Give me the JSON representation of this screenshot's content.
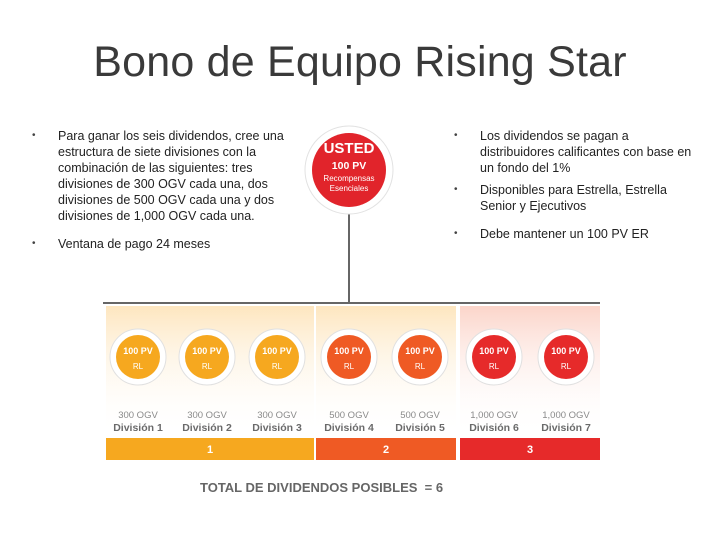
{
  "slide": {
    "title": "Bono de Equipo Rising Star",
    "left_bullets": [
      "Para ganar los seis dividendos, cree una estructura de siete divisiones con la combinación de las siguientes: tres divisiones de 300 OGV cada una, dos divisiones de 500 OGV cada una y dos divisiones de 1,000 OGV cada una.",
      "Ventana de pago 24 meses"
    ],
    "right_bullets": [
      "Los dividendos se pagan a distribuidores calificantes con base en un fondo del 1%",
      "Disponibles para Estrella, Estrella Senior y Ejecutivos",
      "Debe mantener un 100 PV ER"
    ]
  },
  "diagram": {
    "center": {
      "label": "USTED",
      "pv": "100 PV",
      "sub1": "Recompensas",
      "sub2": "Esenciales"
    },
    "divisions": [
      {
        "pv": "100 PV",
        "rl": "RL",
        "ogv": "300 OGV",
        "name": "División 1"
      },
      {
        "pv": "100 PV",
        "rl": "RL",
        "ogv": "300 OGV",
        "name": "División 2"
      },
      {
        "pv": "100 PV",
        "rl": "RL",
        "ogv": "300 OGV",
        "name": "División 3"
      },
      {
        "pv": "100 PV",
        "rl": "RL",
        "ogv": "500 OGV",
        "name": "División 4"
      },
      {
        "pv": "100 PV",
        "rl": "RL",
        "ogv": "500 OGV",
        "name": "División 5"
      },
      {
        "pv": "100 PV",
        "rl": "RL",
        "ogv": "1,000 OGV",
        "name": "División 6"
      },
      {
        "pv": "100 PV",
        "rl": "RL",
        "ogv": "1,000 OGV",
        "name": "División 7"
      }
    ],
    "groups": [
      {
        "number": "1",
        "color": "#f6a81f"
      },
      {
        "number": "2",
        "color": "#ef5a24"
      },
      {
        "number": "3",
        "color": "#e62a2a"
      }
    ],
    "total": "TOTAL DE DIVIDENDOS POSIBLES  = 6"
  }
}
